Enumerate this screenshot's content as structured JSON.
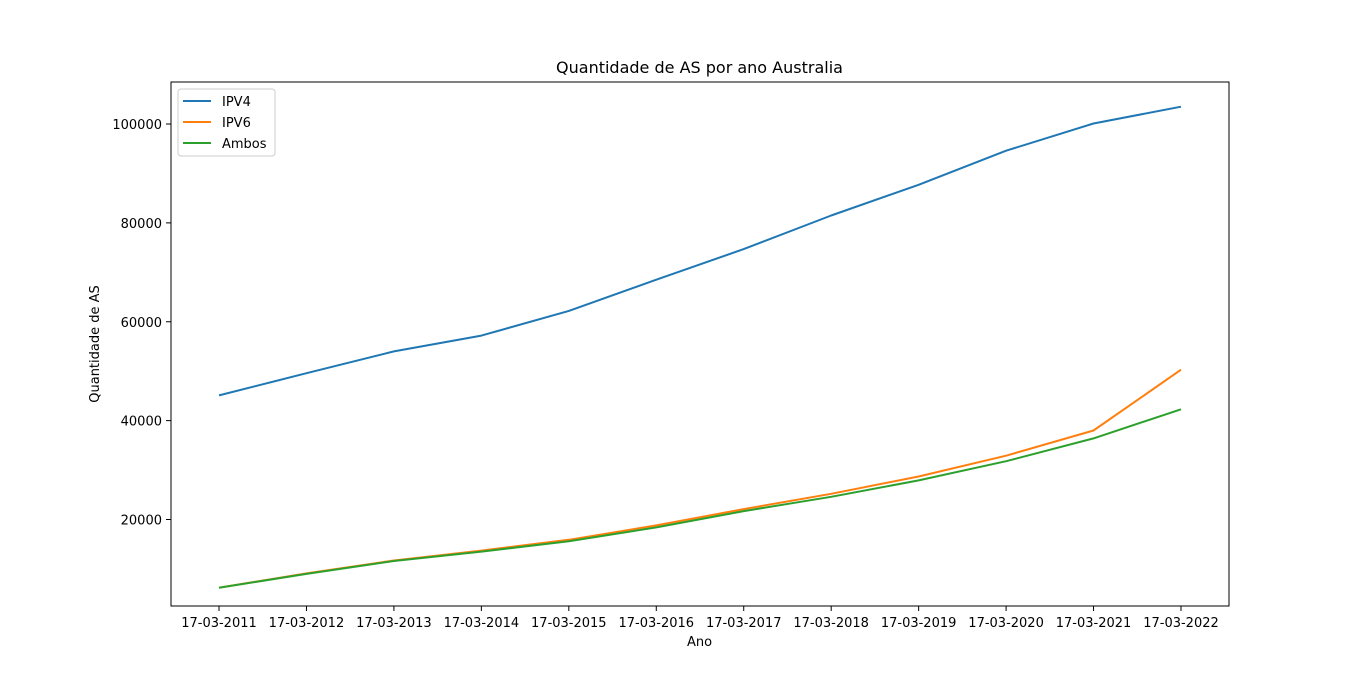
{
  "chart_data": {
    "type": "line",
    "title": "Quantidade de AS por ano Australia",
    "xlabel": "Ano",
    "ylabel": "Quantidade de AS",
    "categories": [
      "17-03-2011",
      "17-03-2012",
      "17-03-2013",
      "17-03-2014",
      "17-03-2015",
      "17-03-2016",
      "17-03-2017",
      "17-03-2018",
      "17-03-2019",
      "17-03-2020",
      "17-03-2021",
      "17-03-2022"
    ],
    "ylim": [
      2500,
      108500
    ],
    "yticks": [
      20000,
      40000,
      60000,
      80000,
      100000
    ],
    "ytick_labels": [
      "20000",
      "40000",
      "60000",
      "80000",
      "100000"
    ],
    "grid": false,
    "legend_position": "top-left",
    "series": [
      {
        "name": "IPV4",
        "color": "#1f77b4",
        "values": [
          45100,
          49600,
          54000,
          57200,
          62200,
          68500,
          74700,
          81500,
          87700,
          94600,
          100100,
          103500
        ]
      },
      {
        "name": "IPV6",
        "color": "#ff7f0e",
        "values": [
          6200,
          9100,
          11700,
          13700,
          15900,
          18800,
          22100,
          25200,
          28700,
          32900,
          38000,
          50300
        ]
      },
      {
        "name": "Ambos",
        "color": "#2ca02c",
        "values": [
          6200,
          9000,
          11600,
          13500,
          15600,
          18400,
          21700,
          24600,
          27900,
          31800,
          36400,
          42300
        ]
      }
    ]
  }
}
